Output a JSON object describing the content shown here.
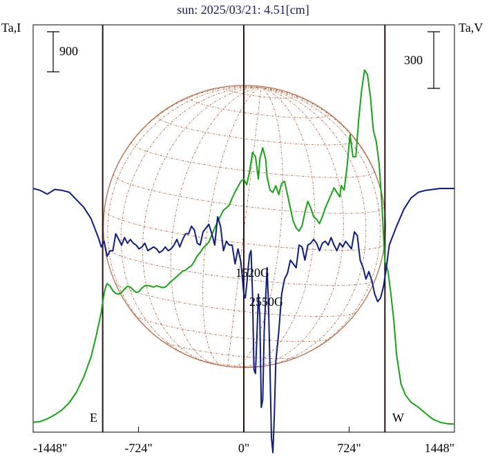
{
  "chart_data": {
    "type": "line",
    "title": "sun: 2025/03/21: 4.51[cm]",
    "left_axis_label": "Ta,I",
    "right_axis_label": "Ta,V",
    "left_scale_bar_label": "900",
    "left_scale_bar_value": 900,
    "right_scale_bar_label": "300",
    "right_scale_bar_value": 300,
    "x_unit": "arcsec",
    "xlim": [
      -1448,
      1448
    ],
    "x_ticks": [
      -1448,
      -724,
      0,
      724,
      1448
    ],
    "x_tick_labels": [
      "-1448\"",
      "-724\"",
      "0\"",
      "724\"",
      "1448\""
    ],
    "limb_lines_x": [
      -970,
      0,
      970
    ],
    "limb_labels": {
      "east": "E",
      "west": "W"
    },
    "annotations": [
      {
        "text": "1520G",
        "x": 95
      },
      {
        "text": "2550G",
        "x": 195
      }
    ],
    "colors": {
      "intensity": "#11a611",
      "polarization": "#0c1a8c",
      "disk": "#b5643c",
      "limb_lines": "#2a1212",
      "title": "#1a1a66"
    },
    "series": [
      {
        "axis": "intensity",
        "x": [
          -1448,
          -1400,
          -1350,
          -1300,
          -1250,
          -1200,
          -1150,
          -1100,
          -1050,
          -1020,
          -1000,
          -980,
          -970,
          -960,
          -950,
          -940,
          -920,
          -900,
          -880,
          -860,
          -840,
          -820,
          -800,
          -780,
          -760,
          -740,
          -720,
          -700,
          -680,
          -660,
          -640,
          -620,
          -600,
          -580,
          -560,
          -540,
          -520,
          -500,
          -480,
          -460,
          -440,
          -420,
          -400,
          -380,
          -360,
          -340,
          -320,
          -300,
          -280,
          -260,
          -240,
          -220,
          -200,
          -180,
          -160,
          -140,
          -120,
          -100,
          -80,
          -60,
          -40,
          -20,
          0,
          20,
          40,
          60,
          80,
          100,
          110,
          130,
          150,
          160,
          180,
          200,
          220,
          240,
          260,
          280,
          300,
          320,
          340,
          360,
          380,
          400,
          420,
          440,
          460,
          480,
          500,
          520,
          540,
          560,
          580,
          600,
          620,
          640,
          660,
          670,
          690,
          710,
          730,
          750,
          770,
          790,
          810,
          830,
          850,
          870,
          890,
          910,
          930,
          950,
          960,
          970,
          990,
          1010,
          1030,
          1050,
          1080,
          1110,
          1150,
          1200,
          1250,
          1300,
          1350,
          1400,
          1448
        ],
        "y": [
          80,
          100,
          160,
          250,
          360,
          520,
          760,
          1100,
          1550,
          1950,
          2250,
          2550,
          2780,
          2980,
          3120,
          3200,
          3150,
          3040,
          2980,
          2960,
          3000,
          3080,
          3140,
          3120,
          3060,
          3000,
          3020,
          3100,
          3150,
          3160,
          3140,
          3120,
          3150,
          3130,
          3110,
          3120,
          3180,
          3250,
          3300,
          3360,
          3420,
          3480,
          3500,
          3560,
          3600,
          3700,
          3820,
          3900,
          4000,
          4060,
          4130,
          4300,
          4450,
          4600,
          4720,
          4850,
          4900,
          4960,
          5120,
          5260,
          5380,
          5500,
          5550,
          5420,
          5720,
          6150,
          6050,
          5550,
          6000,
          6250,
          6000,
          5600,
          5300,
          5250,
          5400,
          5200,
          5450,
          5500,
          5200,
          4900,
          4600,
          4450,
          4380,
          4500,
          4800,
          5050,
          4900,
          4700,
          4650,
          4550,
          4700,
          4900,
          5050,
          5200,
          5350,
          5250,
          5150,
          5400,
          5300,
          5850,
          6550,
          6050,
          6050,
          6900,
          7550,
          8000,
          7900,
          7400,
          6650,
          6400,
          5900,
          4950,
          4300,
          3700,
          3500,
          3000,
          2400,
          1600,
          950,
          700,
          530,
          420,
          280,
          150,
          80,
          50,
          40
        ]
      },
      {
        "axis": "polarization",
        "x": [
          -1448,
          -1400,
          -1350,
          -1300,
          -1250,
          -1200,
          -1150,
          -1100,
          -1050,
          -1000,
          -980,
          -960,
          -940,
          -920,
          -900,
          -880,
          -860,
          -840,
          -820,
          -800,
          -780,
          -760,
          -740,
          -720,
          -700,
          -680,
          -660,
          -640,
          -620,
          -600,
          -580,
          -560,
          -540,
          -520,
          -500,
          -480,
          -460,
          -440,
          -420,
          -400,
          -380,
          -360,
          -340,
          -320,
          -300,
          -280,
          -260,
          -240,
          -220,
          -200,
          -180,
          -160,
          -140,
          -120,
          -100,
          -80,
          -60,
          -40,
          -20,
          0,
          10,
          20,
          30,
          40,
          50,
          60,
          70,
          80,
          90,
          100,
          110,
          120,
          130,
          140,
          150,
          160,
          170,
          180,
          190,
          200,
          210,
          220,
          240,
          260,
          280,
          300,
          320,
          340,
          360,
          380,
          400,
          420,
          440,
          460,
          480,
          500,
          520,
          540,
          560,
          580,
          600,
          620,
          640,
          660,
          680,
          700,
          720,
          740,
          760,
          780,
          800,
          820,
          840,
          860,
          880,
          900,
          920,
          940,
          960,
          980,
          1000,
          1050,
          1100,
          1150,
          1200,
          1250,
          1300,
          1350,
          1400,
          1448
        ],
        "y": [
          0,
          -10,
          -30,
          -5,
          -10,
          -20,
          -60,
          -100,
          -160,
          -260,
          -310,
          -280,
          -360,
          -330,
          -330,
          -240,
          -270,
          -300,
          -260,
          -290,
          -270,
          -290,
          -300,
          -320,
          -310,
          -290,
          -330,
          -320,
          -310,
          -320,
          -340,
          -330,
          -310,
          -330,
          -320,
          -300,
          -270,
          -310,
          -270,
          -240,
          -240,
          -200,
          -220,
          -290,
          -300,
          -230,
          -210,
          -190,
          -240,
          -300,
          -150,
          -200,
          -330,
          -280,
          -300,
          -300,
          -400,
          -320,
          -390,
          -560,
          -580,
          -510,
          -420,
          -350,
          -330,
          -560,
          -960,
          -980,
          -780,
          -560,
          -680,
          -1160,
          -1120,
          -760,
          -580,
          -420,
          -620,
          -950,
          -1320,
          -1400,
          -1200,
          -920,
          -760,
          -560,
          -480,
          -450,
          -380,
          -400,
          -420,
          -300,
          -310,
          -380,
          -300,
          -290,
          -270,
          -290,
          -330,
          -290,
          -280,
          -300,
          -260,
          -300,
          -330,
          -290,
          -310,
          -280,
          -300,
          -320,
          -230,
          -250,
          -380,
          -420,
          -480,
          -440,
          -490,
          -560,
          -600,
          -580,
          -520,
          -420,
          -300,
          -200,
          -110,
          -50,
          -20,
          -10,
          -5,
          0,
          0,
          0
        ]
      }
    ]
  }
}
